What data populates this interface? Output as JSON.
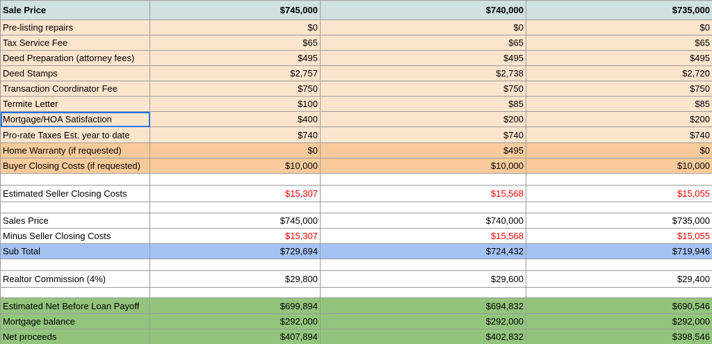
{
  "table": {
    "rows": [
      [
        "Sale Price",
        "$745,000",
        "$740,000",
        "$735,000"
      ],
      [
        "Pre-listing repairs",
        "$0",
        "$0",
        "$0"
      ],
      [
        "Tax Service Fee",
        "$65",
        "$65",
        "$65"
      ],
      [
        "Deed Preparation (attorney fees)",
        "$495",
        "$495",
        "$495"
      ],
      [
        "Deed Stamps",
        "$2,757",
        "$2,738",
        "$2,720"
      ],
      [
        "Transaction Coordinator Fee",
        "$750",
        "$750",
        "$750"
      ],
      [
        "Termite Letter",
        "$100",
        "$85",
        "$85"
      ],
      [
        "Mortgage/HOA Satisfaction",
        "$400",
        "$200",
        "$200"
      ],
      [
        "Pro-rate Taxes Est. year to date",
        "$740",
        "$740",
        "$740"
      ],
      [
        "Home Warranty (if requested)",
        "$0",
        "$495",
        "$0"
      ],
      [
        "Buyer Closing Costs (if requested)",
        "$10,000",
        "$10,000",
        "$10,000"
      ],
      [
        "Estimated Seller Closing Costs",
        "$15,307",
        "$15,568",
        "$15,055"
      ],
      [
        "Sales Price",
        "$745,000",
        "$740,000",
        "$735,000"
      ],
      [
        "Minus Seller Closing Costs",
        "$15,307",
        "$15,568",
        "$15,055"
      ],
      [
        "Sub Total",
        "$729,694",
        "$724,432",
        "$719,946"
      ],
      [
        "Realtor Commission (4%)",
        "$29,800",
        "$29,600",
        "$29,400"
      ],
      [
        "Estimated Net Before Loan Payoff",
        "$699,894",
        "$694,832",
        "$690,546"
      ],
      [
        "Mortgage balance",
        "$292,000",
        "$292,000",
        "$292,000"
      ],
      [
        "Net proceeds",
        "$407,894",
        "$402,832",
        "$398,546"
      ]
    ]
  }
}
